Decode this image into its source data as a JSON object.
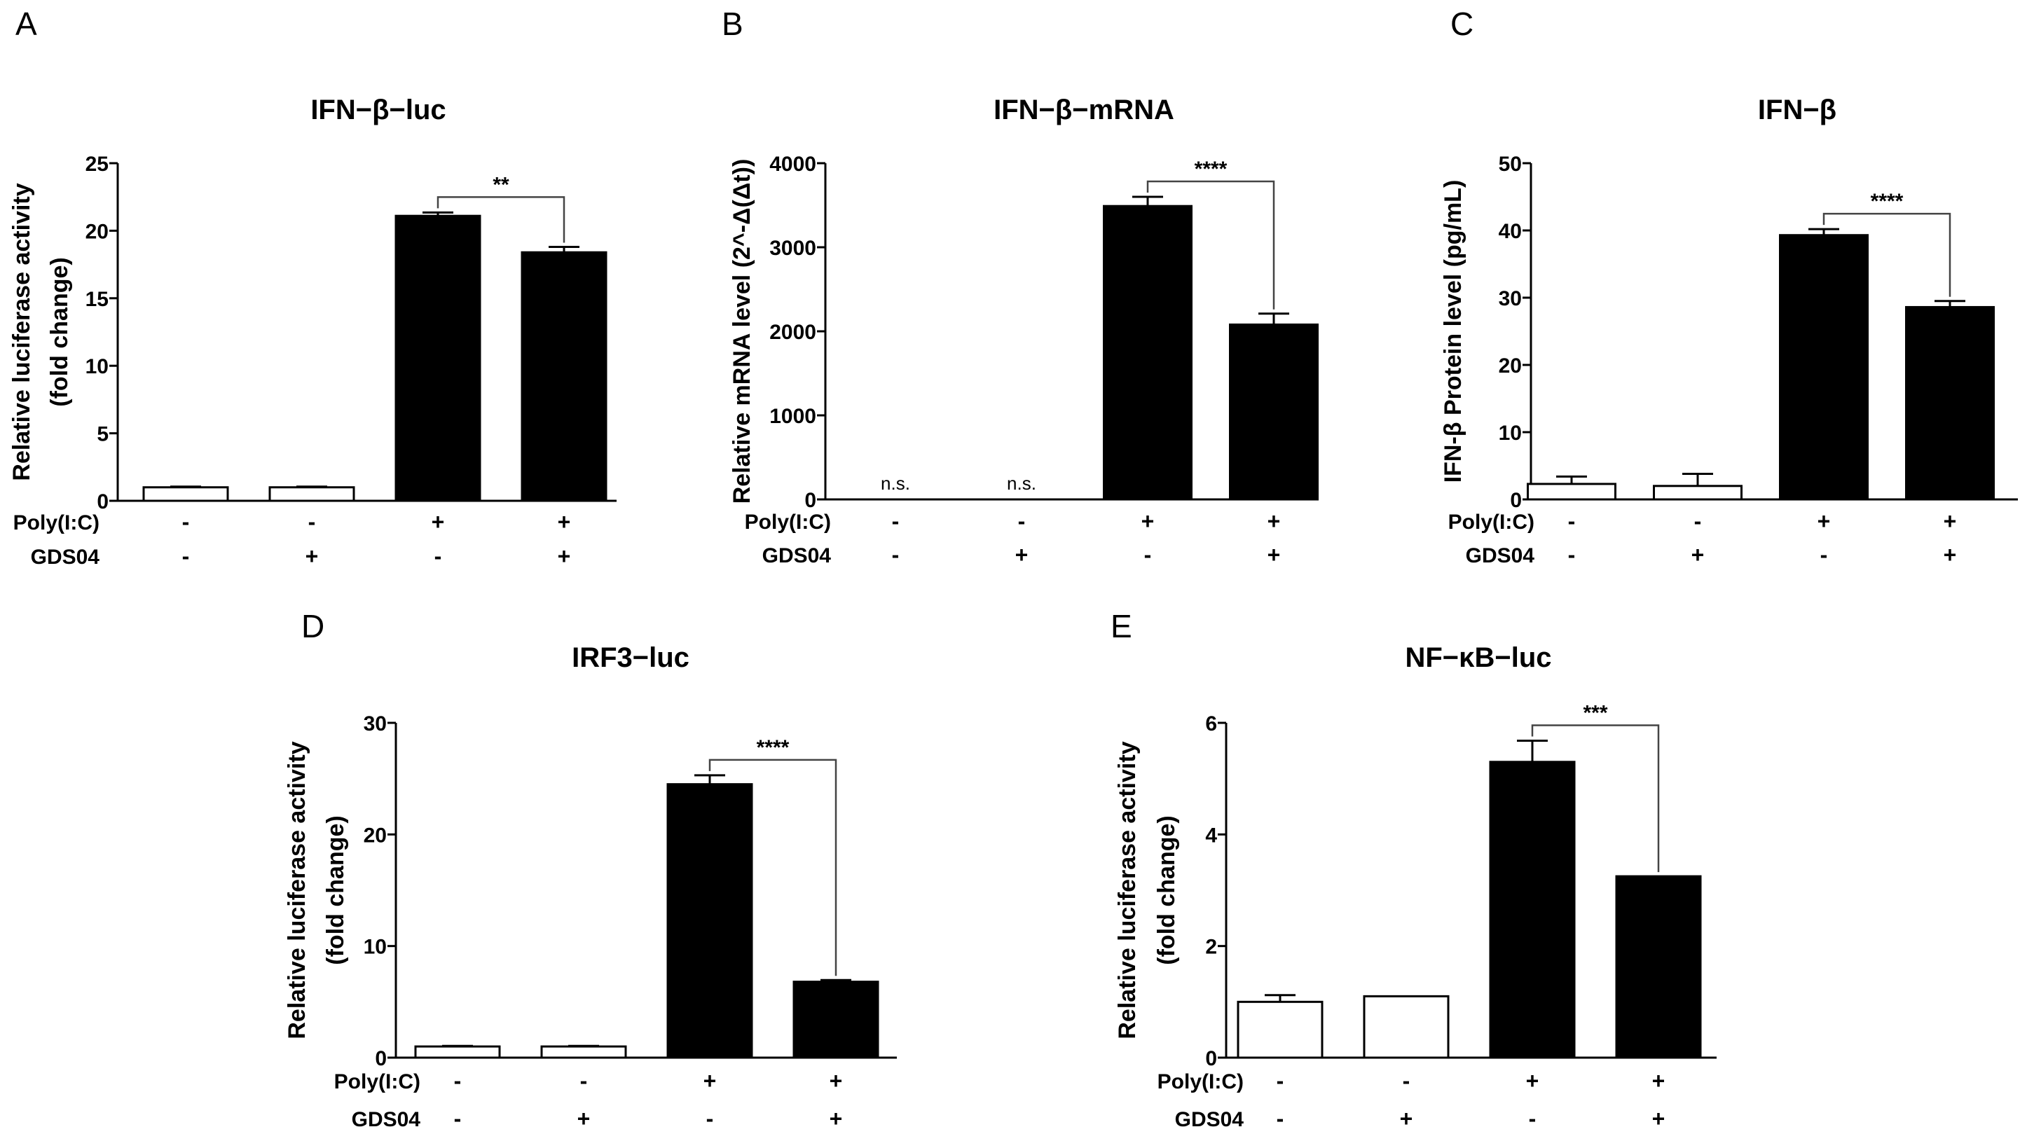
{
  "figure": {
    "panels": [
      {
        "letter": "A",
        "chart_index": 0
      },
      {
        "letter": "B",
        "chart_index": 1
      },
      {
        "letter": "C",
        "chart_index": 2
      },
      {
        "letter": "D",
        "chart_index": 3
      },
      {
        "letter": "E",
        "chart_index": 4
      }
    ],
    "condition_rows": [
      "Poly(I:C)",
      "GDS04"
    ],
    "conditions": [
      {
        "poly": "-",
        "gds": "-"
      },
      {
        "poly": "-",
        "gds": "+"
      },
      {
        "poly": "+",
        "gds": "-"
      },
      {
        "poly": "+",
        "gds": "+"
      }
    ],
    "colors": {
      "treated_bar": "#000000",
      "control_bar": "#ffffff",
      "axis": "#000000"
    }
  },
  "chart_data": [
    {
      "type": "bar",
      "title": "IFN−β−luc",
      "ylabel": [
        "Relative luciferase activity",
        "(fold change)"
      ],
      "ylim": [
        0,
        25
      ],
      "yticks": [
        0,
        5,
        10,
        15,
        20,
        25
      ],
      "values": [
        1.0,
        1.0,
        21.1,
        18.4
      ],
      "errors": [
        0.05,
        0.05,
        0.25,
        0.4
      ],
      "significance": {
        "label": "**",
        "from": 2,
        "to": 3
      }
    },
    {
      "type": "bar",
      "title": "IFN−β−mRNA",
      "ylabel": [
        "Relative mRNA level (2^-Δ(Δt))"
      ],
      "ylim": [
        0,
        4000
      ],
      "yticks": [
        0,
        1000,
        2000,
        3000,
        4000
      ],
      "values": [
        0,
        0,
        3490,
        2080
      ],
      "errors": [
        0,
        0,
        110,
        130
      ],
      "bar_annotations": [
        "n.s.",
        "n.s.",
        "",
        ""
      ],
      "significance": {
        "label": "****",
        "from": 2,
        "to": 3
      }
    },
    {
      "type": "bar",
      "title": "IFN−β",
      "ylabel": [
        "IFN-β Protein level (pg/mL)"
      ],
      "ylim": [
        0,
        50
      ],
      "yticks": [
        0,
        10,
        20,
        30,
        40,
        50
      ],
      "values": [
        2.3,
        2.0,
        39.3,
        28.6
      ],
      "errors": [
        1.1,
        1.8,
        0.9,
        0.9
      ],
      "significance": {
        "label": "****",
        "from": 2,
        "to": 3
      }
    },
    {
      "type": "bar",
      "title": "IRF3−luc",
      "ylabel": [
        "Relative luciferase activity",
        "(fold change)"
      ],
      "ylim": [
        0,
        30
      ],
      "yticks": [
        0,
        10,
        20,
        30
      ],
      "values": [
        1.0,
        1.0,
        24.5,
        6.8
      ],
      "errors": [
        0.05,
        0.05,
        0.8,
        0.15
      ],
      "significance": {
        "label": "****",
        "from": 2,
        "to": 3
      }
    },
    {
      "type": "bar",
      "title": "NF−κB−luc",
      "ylabel": [
        "Relative luciferase activity",
        "(fold change)"
      ],
      "ylim": [
        0,
        6
      ],
      "yticks": [
        0,
        2,
        4,
        6
      ],
      "values": [
        1.0,
        1.1,
        5.3,
        3.25
      ],
      "errors": [
        0.12,
        0.0,
        0.38,
        0.0
      ],
      "significance": {
        "label": "***",
        "from": 2,
        "to": 3
      }
    }
  ]
}
